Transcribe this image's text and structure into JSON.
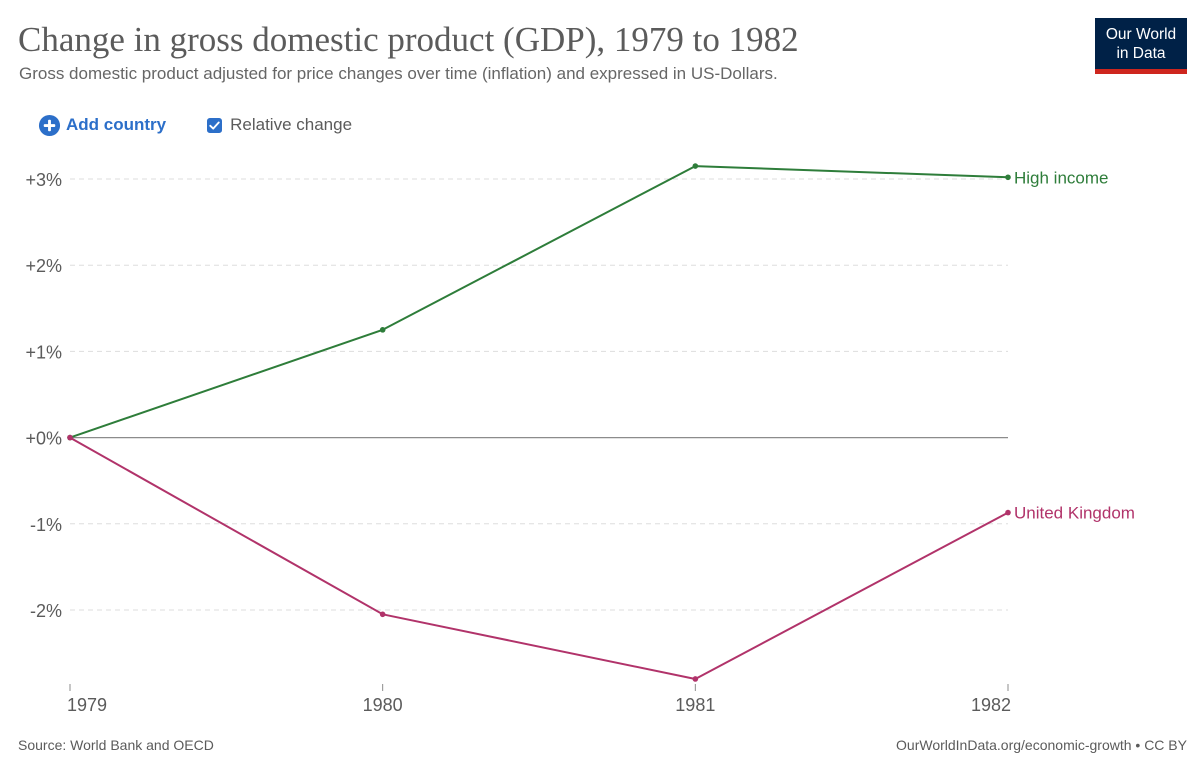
{
  "header": {
    "title": "Change in gross domestic product (GDP), 1979 to 1982",
    "subtitle": "Gross domestic product adjusted for price changes over time (inflation) and expressed in US-Dollars."
  },
  "logo": {
    "line1": "Our World",
    "line2": "in Data",
    "bg_color": "#002147",
    "bar_color": "#ce261e"
  },
  "controls": {
    "add_country_label": "Add country",
    "add_country_icon": "plus-circle-icon",
    "relative_change_label": "Relative change",
    "relative_change_checked": true,
    "accent_color": "#2c6fc9"
  },
  "chart_data": {
    "type": "line",
    "title": "Change in gross domestic product (GDP), 1979 to 1982",
    "x": [
      1979,
      1980,
      1981,
      1982
    ],
    "x_tick_labels": [
      "1979",
      "1980",
      "1981",
      "1982"
    ],
    "y_tick_values": [
      3,
      2,
      1,
      0,
      -1,
      -2
    ],
    "y_tick_labels": [
      "+3%",
      "+2%",
      "+1%",
      "+0%",
      "-1%",
      "-2%"
    ],
    "ylim": [
      -2.8,
      3.15
    ],
    "y_unit": "%",
    "grid": "horizontal dashed",
    "legend": "inline labels at line ends (right)",
    "series": [
      {
        "name": "High income",
        "color": "#2e7d3a",
        "values": [
          0,
          1.25,
          3.15,
          3.02
        ]
      },
      {
        "name": "United Kingdom",
        "color": "#b1336a",
        "values": [
          0,
          -2.05,
          -2.8,
          -0.87
        ]
      }
    ]
  },
  "footer": {
    "source": "Source: World Bank and OECD",
    "credit": "OurWorldInData.org/economic-growth • CC BY"
  }
}
